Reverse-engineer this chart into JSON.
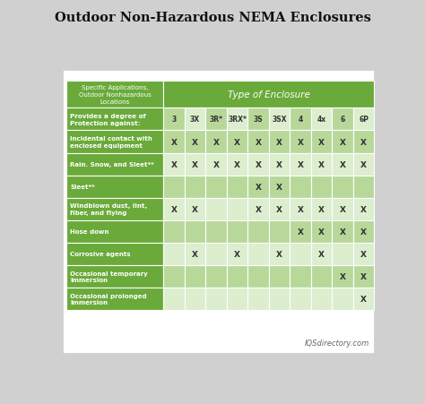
{
  "title": "Outdoor Non-Hazardous NEMA Enclosures",
  "header_left": "Specific Applications,\nOutdoor Nonhazardous\nLocations",
  "header_right": "Type of Enclosure",
  "col_headers": [
    "3",
    "3X",
    "3R*",
    "3RX*",
    "3S",
    "3SX",
    "4",
    "4x",
    "6",
    "6P"
  ],
  "row_labels": [
    "Provides a degree of\nProtection against:",
    "Incidental contact with\nenclosed equipment",
    "Rain. Snow, and Sleet**",
    "Sleet**",
    "Windblown dust, lint,\nfiber, and flying",
    "Hose down",
    "Corrosive agents",
    "Occasional temporary\nimmersion",
    "Occasional prolonged\nimmersion"
  ],
  "data": [
    [
      "",
      "",
      "",
      "",
      "",
      "",
      "",
      "",
      "",
      ""
    ],
    [
      "X",
      "X",
      "X",
      "X",
      "X",
      "X",
      "X",
      "X",
      "X",
      "X"
    ],
    [
      "X",
      "X",
      "X",
      "X",
      "X",
      "X",
      "X",
      "X",
      "X",
      "X"
    ],
    [
      "",
      "",
      "",
      "",
      "X",
      "X",
      "",
      "",
      "",
      ""
    ],
    [
      "X",
      "X",
      "",
      "",
      "X",
      "X",
      "X",
      "X",
      "X",
      "X"
    ],
    [
      "",
      "",
      "",
      "",
      "",
      "",
      "X",
      "X",
      "X",
      "X"
    ],
    [
      "",
      "X",
      "",
      "X",
      "",
      "X",
      "",
      "X",
      "",
      "X"
    ],
    [
      "",
      "",
      "",
      "",
      "",
      "",
      "",
      "",
      "X",
      "X"
    ],
    [
      "",
      "",
      "",
      "",
      "",
      "",
      "",
      "",
      "",
      "X"
    ]
  ],
  "color_header_green": "#6aaa3a",
  "color_label_green": "#6aaa3a",
  "color_row_dark": "#b8d89a",
  "color_row_light": "#dceece",
  "color_subheader_label": "#6aaa3a",
  "color_bg_outer": "#d0d0d0",
  "color_bg_card": "#ffffff",
  "color_title": "#111111",
  "color_label_text": "#ffffff",
  "color_x_text": "#333333",
  "color_col_header_text": "#333333",
  "color_watermark": "#666666",
  "watermark": "IQSdirectory.com"
}
